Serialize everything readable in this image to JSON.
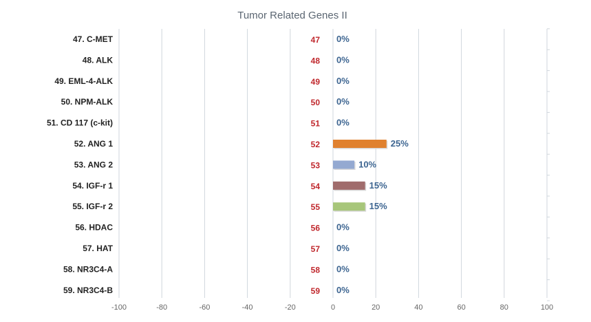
{
  "chart_data": {
    "type": "bar",
    "orientation": "horizontal",
    "title": "Tumor Related Genes II",
    "categories": [
      "47. C-MET",
      "48. ALK",
      "49. EML-4-ALK",
      "50. NPM-ALK",
      "51. CD 117 (c-kit)",
      "52. ANG 1",
      "53. ANG 2",
      "54. IGF-r 1",
      "55. IGF-r 2",
      "56. HDAC",
      "57. HAT",
      "58. NR3C4-A",
      "59. NR3C4-B"
    ],
    "numbers": [
      "47",
      "48",
      "49",
      "50",
      "51",
      "52",
      "53",
      "54",
      "55",
      "56",
      "57",
      "58",
      "59"
    ],
    "values": [
      0,
      0,
      0,
      0,
      0,
      25,
      10,
      15,
      15,
      0,
      0,
      0,
      0
    ],
    "value_labels": [
      "0%",
      "0%",
      "0%",
      "0%",
      "0%",
      "25%",
      "10%",
      "15%",
      "15%",
      "0%",
      "0%",
      "0%",
      "0%"
    ],
    "bar_colors": [
      "#4f81bd",
      "#4f81bd",
      "#4f81bd",
      "#4f81bd",
      "#4f81bd",
      "#e0812f",
      "#94a9d1",
      "#a06c6c",
      "#a7c67a",
      "#4f81bd",
      "#4f81bd",
      "#4f81bd",
      "#4f81bd"
    ],
    "xlim": [
      -100,
      100
    ],
    "xticks": [
      -100,
      -80,
      -60,
      -40,
      -20,
      0,
      20,
      40,
      60,
      80,
      100
    ],
    "xlabel": "",
    "ylabel": "",
    "grid": true,
    "legend": "none"
  }
}
